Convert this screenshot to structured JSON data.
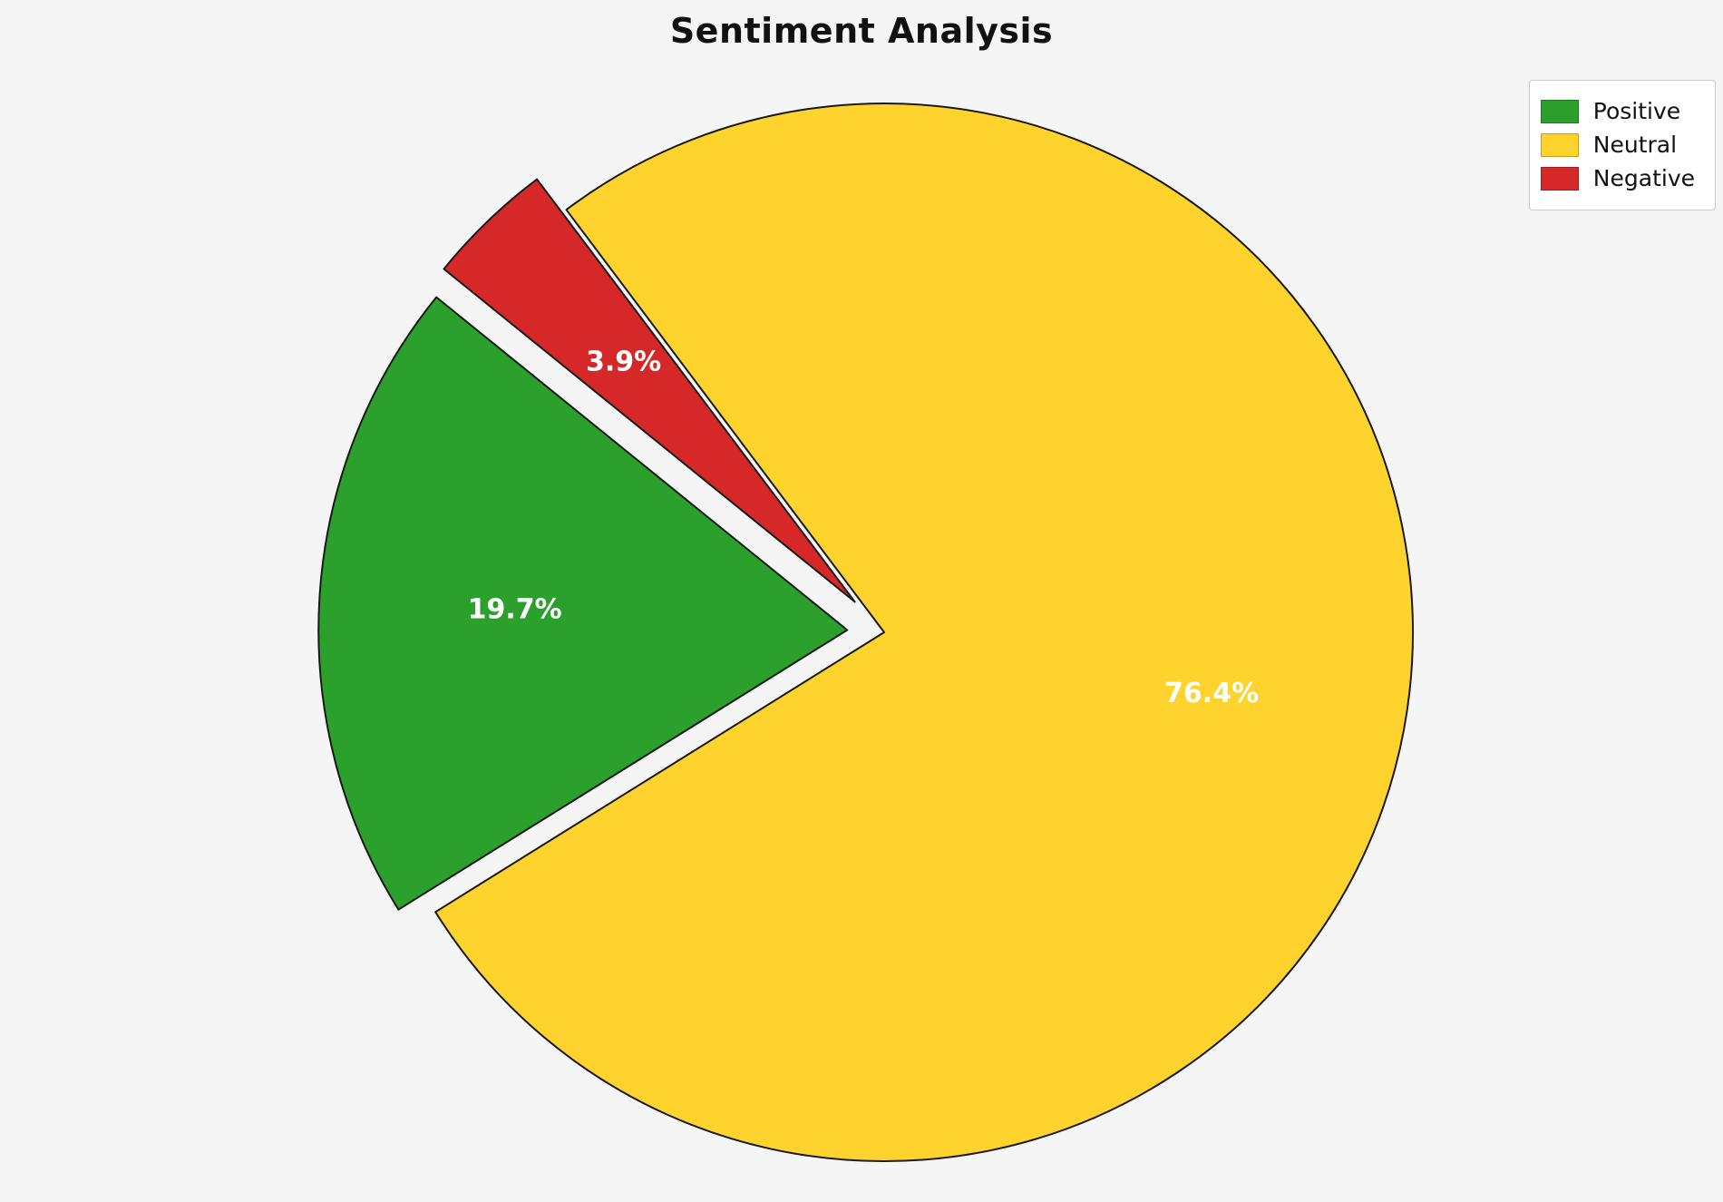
{
  "title": "Sentiment Analysis",
  "chart_data": {
    "type": "pie",
    "title": "Sentiment Analysis",
    "categories": [
      "Positive",
      "Neutral",
      "Negative"
    ],
    "values": [
      19.7,
      76.4,
      3.9
    ],
    "labels": [
      "19.7%",
      "76.4%",
      "3.9%"
    ],
    "colors": [
      "#2ca02c",
      "#ffd32e",
      "#d62828"
    ],
    "explode": [
      0.07,
      0,
      0.08
    ],
    "start_angle": 141,
    "direction": "counterclockwise",
    "edge_color": "#1a1a1a",
    "label_color": "#ffffff",
    "legend_position": "upper right",
    "background": "#f5f5f5"
  },
  "legend": {
    "items": [
      {
        "label": "Positive",
        "color": "#2ca02c"
      },
      {
        "label": "Neutral",
        "color": "#ffd32e"
      },
      {
        "label": "Negative",
        "color": "#d62828"
      }
    ]
  }
}
